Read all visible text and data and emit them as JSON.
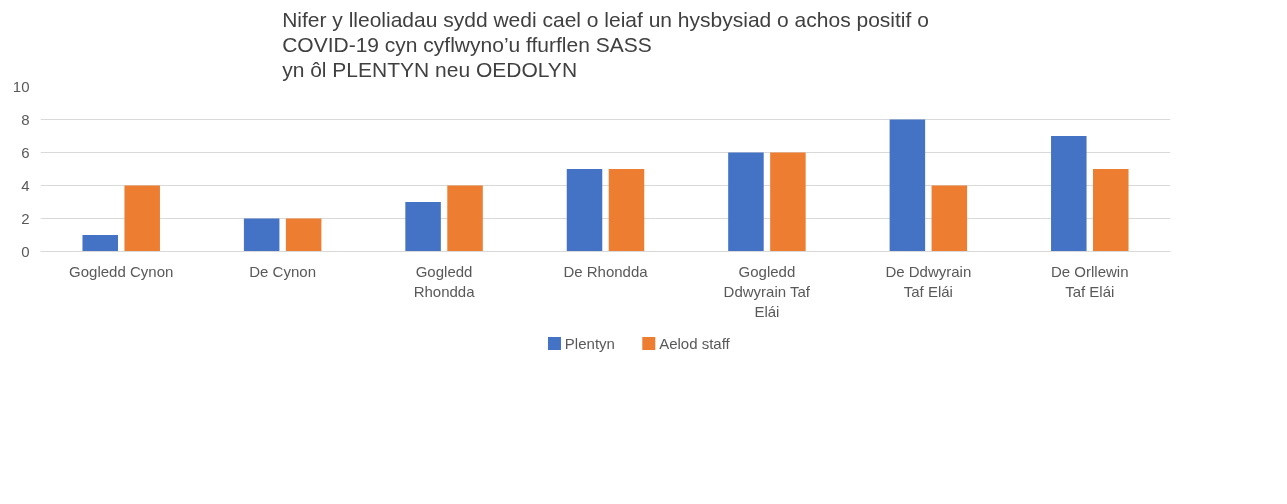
{
  "chart_data": {
    "type": "bar",
    "title": "Nifer y lleoliadau sydd wedi cael o leiaf un hysbysiad o achos positif o\nCOVID-19 cyn cyflwyno’u ffurflen SASS\nyn ôl PLENTYN neu OEDOLYN",
    "categories": [
      "Gogledd Cynon",
      "De Cynon",
      "Gogledd Rhondda",
      "De Rhondda",
      "Gogledd Ddwyrain Taf Elái",
      "De Ddwyrain Taf Elái",
      "De Orllewin Taf Elái"
    ],
    "series": [
      {
        "name": "Plentyn",
        "color": "#4472c4",
        "values": [
          1,
          2,
          3,
          5,
          6,
          8,
          7
        ]
      },
      {
        "name": "Aelod staff",
        "color": "#ed7d31",
        "values": [
          4,
          2,
          4,
          5,
          6,
          4,
          5
        ]
      }
    ],
    "ylim": [
      0,
      10
    ],
    "yticks": [
      0,
      2,
      4,
      6,
      8,
      10
    ],
    "grid": "y",
    "legend": "bottom"
  }
}
